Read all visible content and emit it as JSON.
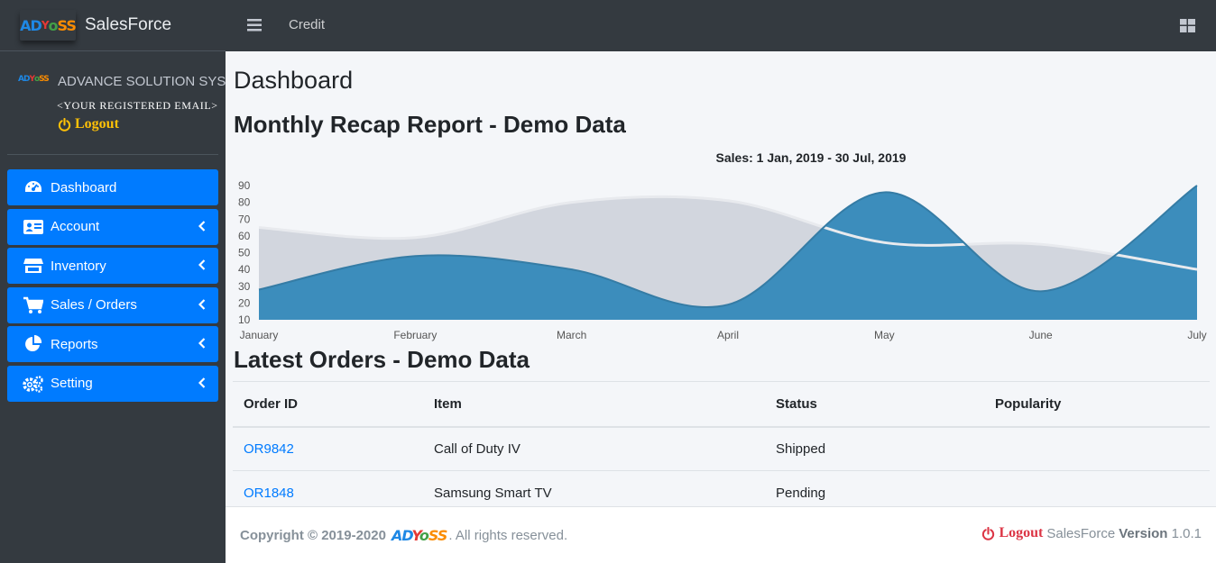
{
  "brand": {
    "logo_text": "ADYOSS",
    "name": "SalesForce"
  },
  "user": {
    "company": "ADVANCE SOLUTION SYSTEM",
    "email": "<YOUR REGISTERED EMAIL>",
    "logout": "Logout"
  },
  "sidebar": {
    "items": [
      {
        "label": "Dashboard",
        "icon": "tachometer-icon",
        "active": true
      },
      {
        "label": "Account",
        "icon": "id-card-icon"
      },
      {
        "label": "Inventory",
        "icon": "store-icon"
      },
      {
        "label": "Sales / Orders",
        "icon": "cart-icon"
      },
      {
        "label": "Reports",
        "icon": "pie-chart-icon"
      },
      {
        "label": "Setting",
        "icon": "cogs-icon"
      }
    ]
  },
  "topbar": {
    "credit": "Credit"
  },
  "main": {
    "title": "Dashboard",
    "report_title": "Monthly Recap Report - Demo Data",
    "orders_title": "Latest Orders - Demo Data"
  },
  "chart_data": {
    "type": "area",
    "title": "Sales: 1 Jan, 2019 - 30 Jul, 2019",
    "categories": [
      "January",
      "February",
      "March",
      "April",
      "May",
      "June",
      "July"
    ],
    "y_ticks": [
      10,
      20,
      30,
      40,
      50,
      60,
      70,
      80,
      90
    ],
    "ylim": [
      10,
      90
    ],
    "series": [
      {
        "values": [
          65,
          59,
          80,
          81,
          56,
          55,
          40
        ],
        "color": "#d2d6de"
      },
      {
        "values": [
          28,
          48,
          40,
          19,
          86,
          27,
          90
        ],
        "color": "#3c8dbc"
      }
    ]
  },
  "orders": {
    "headers": [
      "Order ID",
      "Item",
      "Status",
      "Popularity"
    ],
    "rows": [
      {
        "id": "OR9842",
        "item": "Call of Duty IV",
        "status": "Shipped"
      },
      {
        "id": "OR1848",
        "item": "Samsung Smart TV",
        "status": "Pending"
      }
    ]
  },
  "footer": {
    "copyright": "Copyright © 2019-2020",
    "logo_text": "ADYOSS",
    "rights": ". All rights reserved.",
    "logout": "Logout",
    "app": "SalesForce",
    "version_label": "Version",
    "version": "1.0.1"
  },
  "colors": {
    "sidebar": "#343a40",
    "primary": "#007bff",
    "warning": "#ffc107",
    "danger": "#dc3545"
  }
}
